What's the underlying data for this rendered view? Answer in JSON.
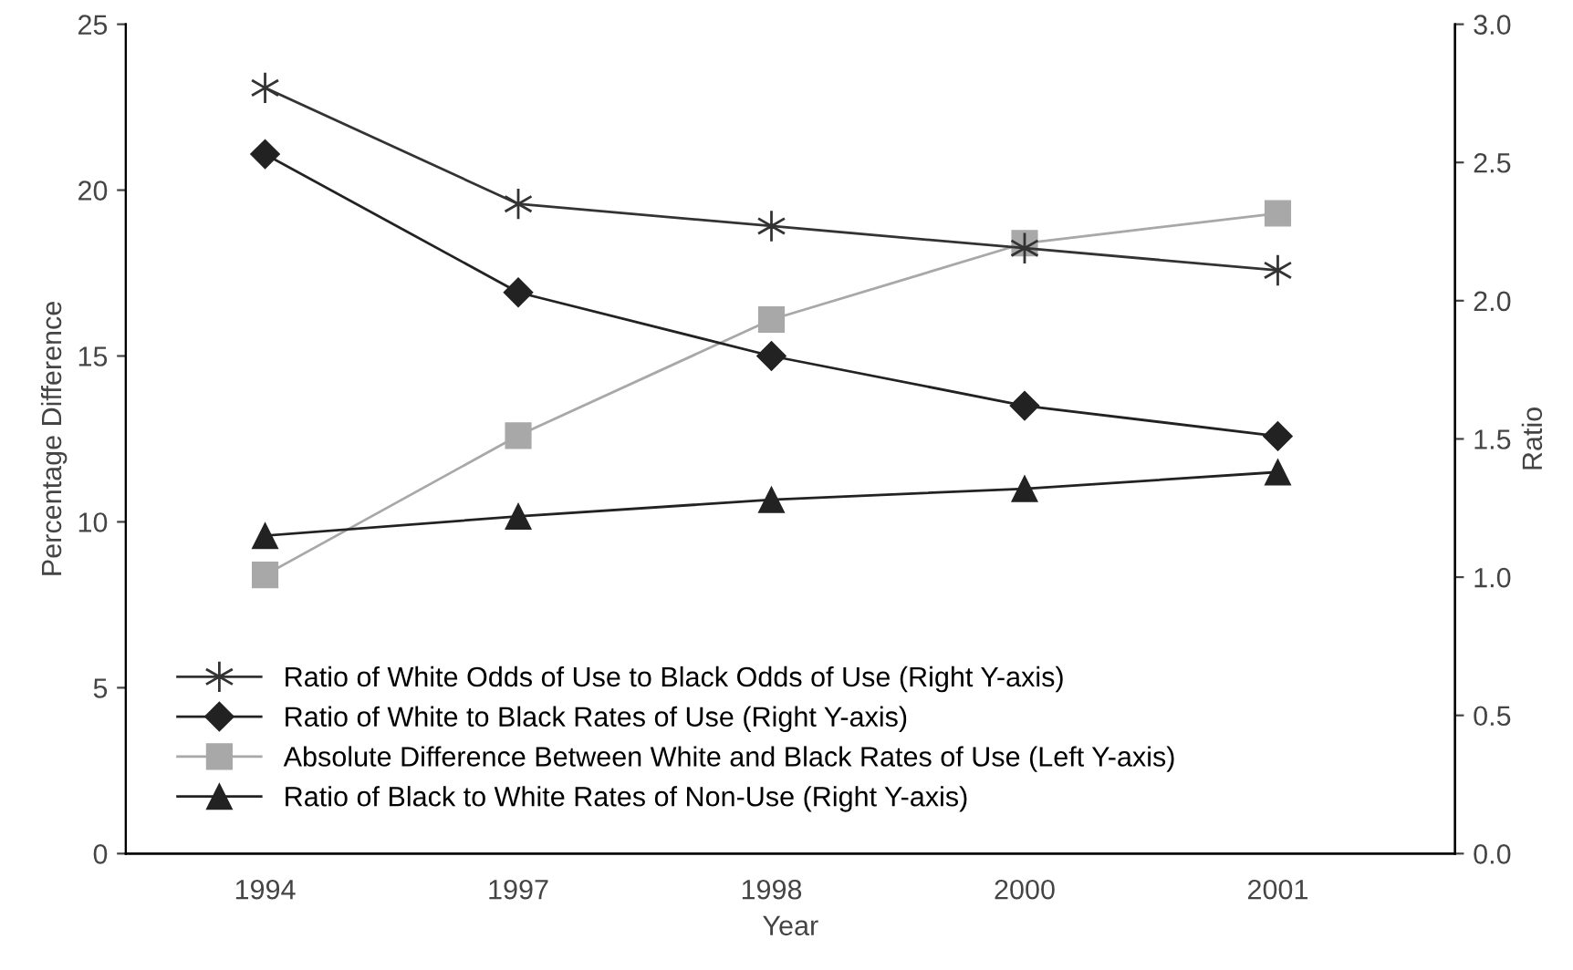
{
  "chart_data": {
    "type": "line",
    "xlabel": "Year",
    "ylabel": "Percentage Difference",
    "y2label": "Ratio",
    "categories": [
      "1994",
      "1997",
      "1998",
      "2000",
      "2001"
    ],
    "series": [
      {
        "name": "Ratio of White Odds of Use to Black Odds of Use (Right Y-axis)",
        "color": "#333333",
        "marker": "cross",
        "axis": "y2",
        "values": [
          2.77,
          2.35,
          2.27,
          2.19,
          2.11
        ]
      },
      {
        "name": "Ratio of White to Black Rates of Use (Right Y-axis)",
        "color": "#222222",
        "marker": "diamond",
        "axis": "y2",
        "values": [
          2.53,
          2.03,
          1.8,
          1.62,
          1.51
        ]
      },
      {
        "name": "Absolute Difference Between White and Black Rates of Use (Left Y-axis)",
        "color": "#a8a8a8",
        "marker": "square",
        "values": [
          8.4,
          12.6,
          16.1,
          18.4,
          19.3
        ]
      },
      {
        "name": "Ratio of Black to White Rates of Non-Use (Right Y-axis)",
        "color": "#222222",
        "marker": "triangle",
        "axis": "y2",
        "values": [
          1.15,
          1.22,
          1.28,
          1.32,
          1.38
        ]
      }
    ],
    "ylim": [
      0,
      25
    ],
    "yticks": [
      0,
      5,
      10,
      15,
      20,
      25
    ],
    "y2lim": [
      0,
      3
    ],
    "y2ticks": [
      {
        "value": 0,
        "label": "0.0"
      },
      {
        "value": 0.5,
        "label": "0.5"
      },
      {
        "value": 1,
        "label": "1.0"
      },
      {
        "value": 1.5,
        "label": "1.5"
      },
      {
        "value": 2,
        "label": "2.0"
      },
      {
        "value": 2.5,
        "label": "2.5"
      },
      {
        "value": 3,
        "label": "3.0"
      }
    ],
    "grid": false,
    "legend": "bottom left",
    "line_style": "solid"
  }
}
